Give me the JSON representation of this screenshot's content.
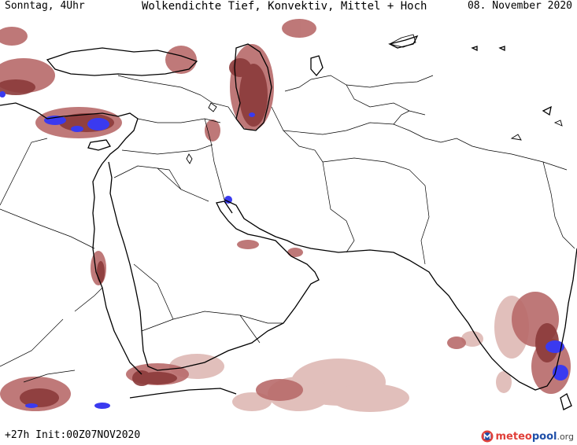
{
  "header": {
    "left": "Sonntag, 4Uhr",
    "title": "Wolkendichte  Tief, Konvektiv, Mittel + Hoch",
    "right": "08. November 2020"
  },
  "footer": {
    "left": "+27h Init:00Z07NOV2020"
  },
  "logo": {
    "part1": "meteo",
    "part2": "pool",
    "part3": ".org",
    "icon": "meteopool-logo-icon"
  },
  "colors": {
    "cloud_dense": "#8b3a3a",
    "cloud_medium": "#b86a6a",
    "cloud_light": "#dcb4b0",
    "convective": "#3a3af0",
    "border": "#000000",
    "background": "#ffffff"
  }
}
